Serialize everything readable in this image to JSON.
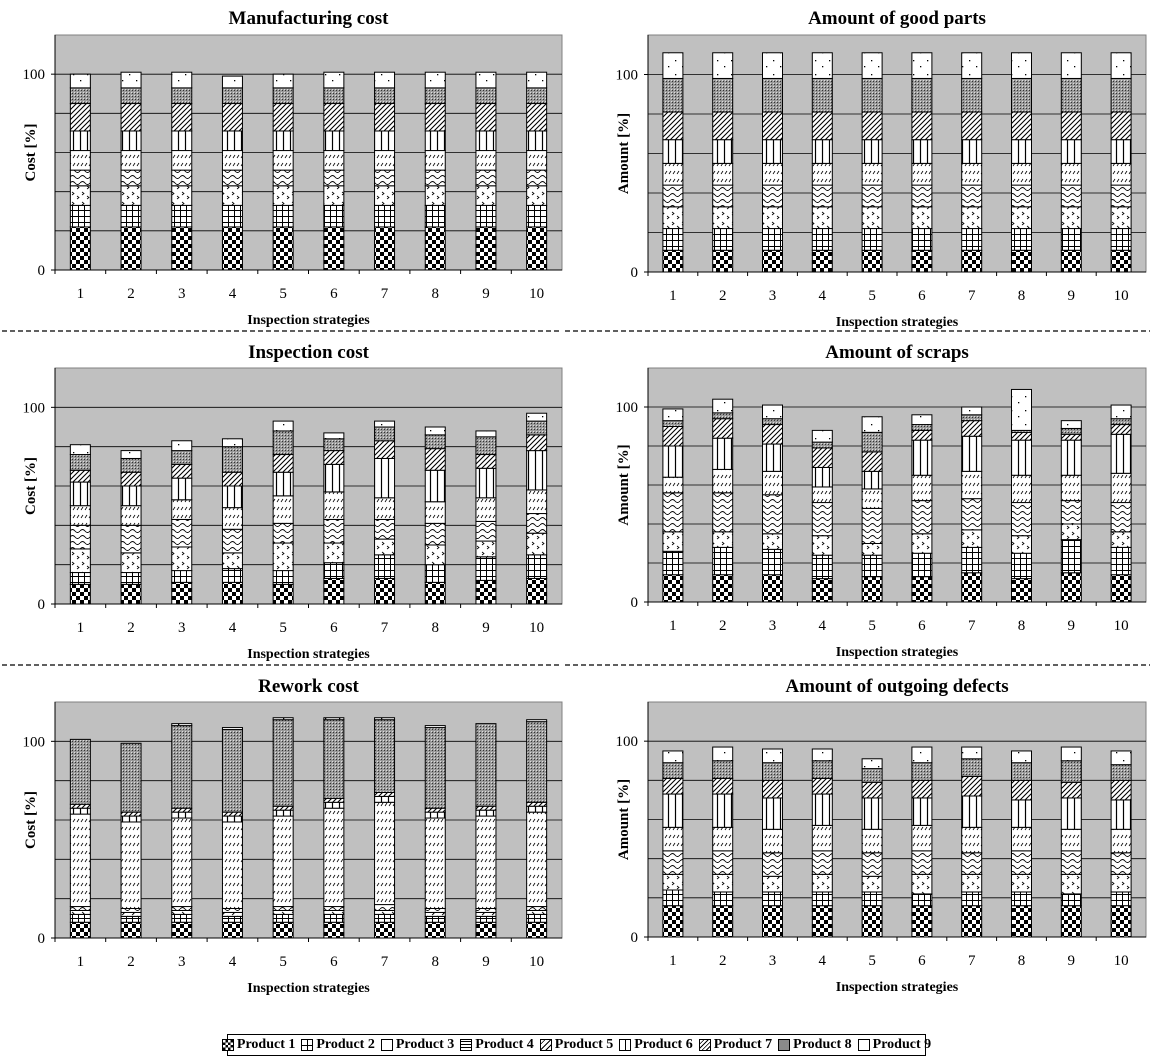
{
  "products": [
    "Product 1",
    "Product 2",
    "Product 3",
    "Product 4",
    "Product 5",
    "Product 6",
    "Product 7",
    "Product 8",
    "Product 9"
  ],
  "chart_data": [
    {
      "type": "bar",
      "stacked": true,
      "title": "Manufacturing cost",
      "xlabel": "Inspection strategies",
      "ylabel": "Cost [%]",
      "ylim": [
        0,
        120
      ],
      "yticks": [
        0,
        100
      ],
      "categories": [
        "1",
        "2",
        "3",
        "4",
        "5",
        "6",
        "7",
        "8",
        "9",
        "10"
      ],
      "series": [
        {
          "name": "Product 1",
          "values": [
            22,
            22,
            22,
            22,
            22,
            22,
            22,
            22,
            22,
            22
          ]
        },
        {
          "name": "Product 2",
          "values": [
            11,
            11,
            11,
            11,
            11,
            11,
            11,
            11,
            11,
            11
          ]
        },
        {
          "name": "Product 3",
          "values": [
            10,
            10,
            10,
            10,
            10,
            10,
            10,
            10,
            10,
            10
          ]
        },
        {
          "name": "Product 4",
          "values": [
            8,
            8,
            8,
            8,
            8,
            8,
            8,
            8,
            8,
            8
          ]
        },
        {
          "name": "Product 5",
          "values": [
            10,
            10,
            10,
            10,
            10,
            10,
            10,
            10,
            10,
            10
          ]
        },
        {
          "name": "Product 6",
          "values": [
            10,
            10,
            10,
            10,
            10,
            10,
            10,
            10,
            10,
            10
          ]
        },
        {
          "name": "Product 7",
          "values": [
            14,
            14,
            14,
            14,
            14,
            14,
            14,
            14,
            14,
            14
          ]
        },
        {
          "name": "Product 8",
          "values": [
            8,
            8,
            8,
            8,
            8,
            8,
            8,
            8,
            8,
            8
          ]
        },
        {
          "name": "Product 9",
          "values": [
            7,
            8,
            8,
            6,
            7,
            8,
            8,
            8,
            8,
            8
          ]
        }
      ]
    },
    {
      "type": "bar",
      "stacked": true,
      "title": "Amount of good parts",
      "xlabel": "Inspection strategies",
      "ylabel": "Amount [%]",
      "ylim": [
        0,
        120
      ],
      "yticks": [
        0,
        100
      ],
      "categories": [
        "1",
        "2",
        "3",
        "4",
        "5",
        "6",
        "7",
        "8",
        "9",
        "10"
      ],
      "series": [
        {
          "name": "Product 1",
          "values": [
            11,
            11,
            11,
            11,
            11,
            11,
            11,
            11,
            11,
            11
          ]
        },
        {
          "name": "Product 2",
          "values": [
            11,
            11,
            11,
            11,
            11,
            11,
            11,
            11,
            11,
            11
          ]
        },
        {
          "name": "Product 3",
          "values": [
            11,
            11,
            11,
            11,
            11,
            11,
            11,
            11,
            11,
            11
          ]
        },
        {
          "name": "Product 4",
          "values": [
            11,
            11,
            11,
            11,
            11,
            11,
            11,
            11,
            11,
            11
          ]
        },
        {
          "name": "Product 5",
          "values": [
            11,
            11,
            11,
            11,
            11,
            11,
            11,
            11,
            11,
            11
          ]
        },
        {
          "name": "Product 6",
          "values": [
            12,
            12,
            12,
            12,
            12,
            12,
            12,
            12,
            12,
            12
          ]
        },
        {
          "name": "Product 7",
          "values": [
            14,
            14,
            14,
            14,
            14,
            14,
            14,
            14,
            14,
            14
          ]
        },
        {
          "name": "Product 8",
          "values": [
            17,
            17,
            17,
            17,
            17,
            17,
            17,
            17,
            17,
            17
          ]
        },
        {
          "name": "Product 9",
          "values": [
            13,
            13,
            13,
            13,
            13,
            13,
            13,
            13,
            13,
            13
          ]
        }
      ]
    },
    {
      "type": "bar",
      "stacked": true,
      "title": "Inspection cost",
      "xlabel": "Inspection strategies",
      "ylabel": "Cost [%]",
      "ylim": [
        0,
        120
      ],
      "yticks": [
        0,
        100
      ],
      "categories": [
        "1",
        "2",
        "3",
        "4",
        "5",
        "6",
        "7",
        "8",
        "9",
        "10"
      ],
      "series": [
        {
          "name": "Product 1",
          "values": [
            10,
            10,
            11,
            11,
            10,
            13,
            13,
            11,
            12,
            13
          ]
        },
        {
          "name": "Product 2",
          "values": [
            6,
            6,
            6,
            7,
            7,
            8,
            12,
            9,
            12,
            12
          ]
        },
        {
          "name": "Product 3",
          "values": [
            12,
            10,
            12,
            8,
            14,
            10,
            8,
            10,
            8,
            11
          ]
        },
        {
          "name": "Product 4",
          "values": [
            12,
            14,
            14,
            12,
            10,
            12,
            10,
            11,
            10,
            10
          ]
        },
        {
          "name": "Product 5",
          "values": [
            10,
            10,
            10,
            11,
            14,
            14,
            11,
            11,
            12,
            12
          ]
        },
        {
          "name": "Product 6",
          "values": [
            12,
            10,
            11,
            11,
            12,
            14,
            20,
            16,
            15,
            20
          ]
        },
        {
          "name": "Product 7",
          "values": [
            6,
            7,
            7,
            7,
            9,
            7,
            9,
            11,
            7,
            8
          ]
        },
        {
          "name": "Product 8",
          "values": [
            8,
            7,
            7,
            13,
            12,
            6,
            7,
            7,
            9,
            7
          ]
        },
        {
          "name": "Product 9",
          "values": [
            5,
            4,
            5,
            4,
            5,
            3,
            3,
            4,
            3,
            4
          ]
        }
      ]
    },
    {
      "type": "bar",
      "stacked": true,
      "title": "Amount of scraps",
      "xlabel": "Inspection strategies",
      "ylabel": "Amount [%]",
      "ylim": [
        0,
        120
      ],
      "yticks": [
        0,
        100
      ],
      "categories": [
        "1",
        "2",
        "3",
        "4",
        "5",
        "6",
        "7",
        "8",
        "9",
        "10"
      ],
      "series": [
        {
          "name": "Product 1",
          "values": [
            14,
            14,
            14,
            12,
            13,
            13,
            15,
            12,
            15,
            14
          ]
        },
        {
          "name": "Product 2",
          "values": [
            12,
            14,
            13,
            12,
            11,
            12,
            13,
            13,
            17,
            14
          ]
        },
        {
          "name": "Product 3",
          "values": [
            10,
            8,
            8,
            10,
            6,
            10,
            9,
            9,
            8,
            8
          ]
        },
        {
          "name": "Product 4",
          "values": [
            20,
            20,
            20,
            17,
            18,
            17,
            16,
            17,
            12,
            15
          ]
        },
        {
          "name": "Product 5",
          "values": [
            8,
            12,
            12,
            8,
            10,
            13,
            14,
            14,
            13,
            15
          ]
        },
        {
          "name": "Product 6",
          "values": [
            16,
            16,
            14,
            10,
            9,
            18,
            18,
            18,
            18,
            20
          ]
        },
        {
          "name": "Product 7",
          "values": [
            10,
            10,
            10,
            10,
            10,
            5,
            8,
            4,
            3,
            5
          ]
        },
        {
          "name": "Product 8",
          "values": [
            3,
            3,
            3,
            3,
            10,
            3,
            3,
            1,
            3,
            3
          ]
        },
        {
          "name": "Product 9",
          "values": [
            6,
            7,
            7,
            6,
            8,
            5,
            4,
            21,
            4,
            7
          ]
        }
      ]
    },
    {
      "type": "bar",
      "stacked": true,
      "title": "Rework cost",
      "xlabel": "Inspection strategies",
      "ylabel": "Cost [%]",
      "ylim": [
        0,
        120
      ],
      "yticks": [
        0,
        100
      ],
      "categories": [
        "1",
        "2",
        "3",
        "4",
        "5",
        "6",
        "7",
        "8",
        "9",
        "10"
      ],
      "series": [
        {
          "name": "Product 1",
          "values": [
            8,
            8,
            8,
            8,
            8,
            8,
            8,
            8,
            8,
            8
          ]
        },
        {
          "name": "Product 2",
          "values": [
            4,
            3,
            4,
            3,
            4,
            4,
            4,
            3,
            3,
            4
          ]
        },
        {
          "name": "Product 3",
          "values": [
            2,
            2,
            2,
            2,
            2,
            2,
            2,
            2,
            2,
            2
          ]
        },
        {
          "name": "Product 4",
          "values": [
            2,
            2,
            2,
            2,
            2,
            2,
            3,
            2,
            2,
            2
          ]
        },
        {
          "name": "Product 5",
          "values": [
            47,
            44,
            45,
            44,
            46,
            50,
            52,
            46,
            47,
            48
          ]
        },
        {
          "name": "Product 6",
          "values": [
            3,
            3,
            3,
            3,
            3,
            3,
            3,
            3,
            3,
            3
          ]
        },
        {
          "name": "Product 7",
          "values": [
            2,
            2,
            2,
            2,
            2,
            2,
            2,
            2,
            2,
            2
          ]
        },
        {
          "name": "Product 8",
          "values": [
            33,
            35,
            42,
            42,
            44,
            40,
            37,
            41,
            42,
            41
          ]
        },
        {
          "name": "Product 9",
          "values": [
            0,
            0,
            1,
            1,
            1,
            1,
            1,
            1,
            0,
            1
          ]
        }
      ]
    },
    {
      "type": "bar",
      "stacked": true,
      "title": "Amount of outgoing defects",
      "xlabel": "Inspection strategies",
      "ylabel": "Amount [%]",
      "ylim": [
        0,
        120
      ],
      "yticks": [
        0,
        100
      ],
      "categories": [
        "1",
        "2",
        "3",
        "4",
        "5",
        "6",
        "7",
        "8",
        "9",
        "10"
      ],
      "series": [
        {
          "name": "Product 1",
          "values": [
            16,
            16,
            16,
            16,
            16,
            16,
            16,
            16,
            16,
            16
          ]
        },
        {
          "name": "Product 2",
          "values": [
            8,
            7,
            7,
            7,
            7,
            6,
            7,
            7,
            6,
            7
          ]
        },
        {
          "name": "Product 3",
          "values": [
            8,
            9,
            8,
            9,
            8,
            10,
            9,
            9,
            10,
            9
          ]
        },
        {
          "name": "Product 4",
          "values": [
            12,
            12,
            12,
            12,
            12,
            12,
            11,
            12,
            12,
            11
          ]
        },
        {
          "name": "Product 5",
          "values": [
            12,
            12,
            12,
            13,
            12,
            13,
            13,
            12,
            11,
            12
          ]
        },
        {
          "name": "Product 6",
          "values": [
            17,
            17,
            16,
            16,
            16,
            14,
            16,
            14,
            16,
            15
          ]
        },
        {
          "name": "Product 7",
          "values": [
            8,
            8,
            9,
            8,
            8,
            9,
            10,
            10,
            8,
            10
          ]
        },
        {
          "name": "Product 8",
          "values": [
            8,
            9,
            9,
            9,
            7,
            9,
            9,
            9,
            11,
            8
          ]
        },
        {
          "name": "Product 9",
          "values": [
            6,
            7,
            7,
            6,
            5,
            8,
            6,
            6,
            7,
            7
          ]
        }
      ]
    }
  ]
}
